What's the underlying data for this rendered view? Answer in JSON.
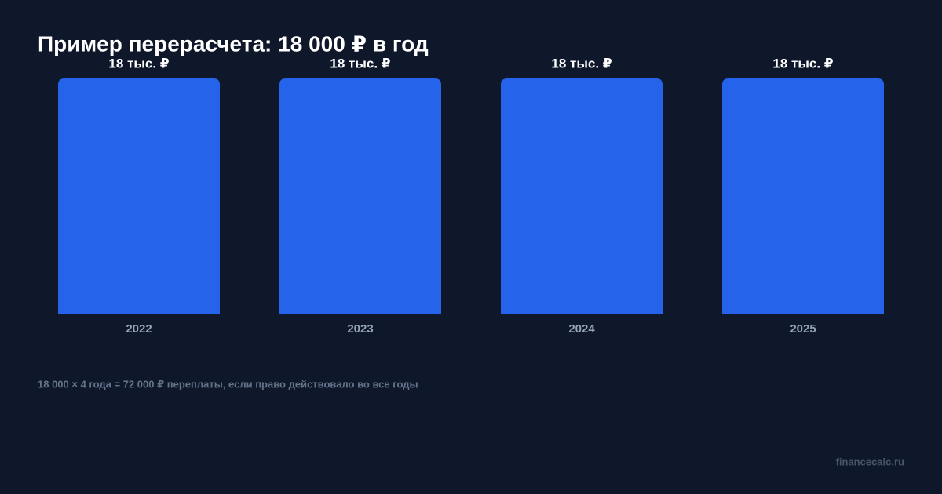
{
  "chart_data": {
    "type": "bar",
    "title": "Пример перерасчета: 18 000 ₽ в год",
    "categories": [
      "2022",
      "2023",
      "2024",
      "2025"
    ],
    "values": [
      18,
      18,
      18,
      18
    ],
    "value_labels": [
      "18 тыс. ₽",
      "18 тыс. ₽",
      "18 тыс. ₽",
      "18 тыс. ₽"
    ],
    "color": "#2563eb",
    "ylim": [
      0,
      18
    ],
    "annotation": "18 000 × 4 года = 72 000 ₽ переплаты, если право действовало во все годы",
    "source": "financecalc.ru"
  }
}
